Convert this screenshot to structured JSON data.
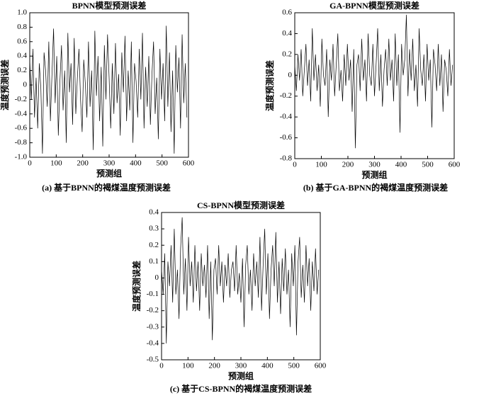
{
  "chart_data": [
    {
      "type": "line",
      "title": "BPNN模型预测误差",
      "xlabel": "预测组",
      "ylabel": "温度预测误差",
      "caption": "(a) 基于BPNN的褐煤温度预测误差",
      "color": "#000000",
      "x": [
        0,
        6,
        12,
        18,
        24,
        30,
        36,
        42,
        48,
        54,
        60,
        66,
        72,
        78,
        84,
        90,
        96,
        102,
        108,
        114,
        120,
        126,
        132,
        138,
        144,
        150,
        156,
        162,
        168,
        174,
        180,
        186,
        192,
        198,
        204,
        210,
        216,
        222,
        228,
        234,
        240,
        246,
        252,
        258,
        264,
        270,
        276,
        282,
        288,
        294,
        300,
        306,
        312,
        318,
        324,
        330,
        336,
        342,
        348,
        354,
        360,
        366,
        372,
        378,
        384,
        390,
        396,
        402,
        408,
        414,
        420,
        426,
        432,
        438,
        444,
        450,
        456,
        462,
        468,
        474,
        480,
        486,
        492,
        498,
        504,
        510,
        516,
        522,
        528,
        534,
        540,
        546,
        552,
        558,
        564,
        570,
        576,
        582,
        588,
        594
      ],
      "values": [
        0.35,
        -0.2,
        0.5,
        -0.45,
        0.1,
        -0.6,
        0.3,
        -0.05,
        -0.95,
        0.45,
        0.2,
        -0.3,
        0.6,
        -0.5,
        0.15,
        0.78,
        -0.25,
        0.4,
        -0.7,
        0.05,
        0.55,
        -0.35,
        0.2,
        -0.8,
        0.72,
        -0.1,
        0.3,
        -0.55,
        0.65,
        -0.4,
        0.1,
        0.5,
        -0.2,
        -0.65,
        0.35,
        0.02,
        -0.45,
        0.6,
        -0.3,
        0.2,
        -0.9,
        0.75,
        -0.15,
        0.4,
        -0.5,
        0.25,
        -0.85,
        0.55,
        -0.2,
        0.7,
        0.1,
        -0.6,
        0.3,
        -0.4,
        0.58,
        -0.25,
        0.15,
        -0.7,
        0.45,
        -0.1,
        0.68,
        -0.5,
        0.2,
        -0.35,
        0.6,
        -0.8,
        0.3,
        0.05,
        -0.45,
        0.5,
        -0.2,
        0.72,
        -0.6,
        0.25,
        -0.3,
        0.4,
        -0.55,
        0.15,
        0.6,
        -0.4,
        0.1,
        -0.75,
        0.5,
        -0.2,
        0.3,
        -0.5,
        0.82,
        -0.3,
        0.45,
        -0.65,
        0.2,
        -0.95,
        0.55,
        -0.1,
        0.38,
        -0.6,
        0.7,
        -0.25,
        0.3,
        -0.45
      ],
      "xlim": [
        0,
        600
      ],
      "xticks": [
        0,
        100,
        200,
        300,
        400,
        500,
        600
      ],
      "ylim": [
        -1,
        1
      ],
      "yticks": [
        {
          "value": 1,
          "label": "1.0"
        },
        0.8,
        0.6,
        0.4,
        0.2,
        0,
        -0.2,
        -0.4,
        -0.6,
        -0.8,
        {
          "value": -1,
          "label": "-1.0"
        }
      ]
    },
    {
      "type": "line",
      "title": "GA-BPNN模型预测误差",
      "xlabel": "预测组",
      "ylabel": "温度预测误差",
      "caption": "(b) 基于GA-BPNN的褐煤温度预测误差",
      "color": "#000000",
      "x": [
        0,
        6,
        12,
        18,
        24,
        30,
        36,
        42,
        48,
        54,
        60,
        66,
        72,
        78,
        84,
        90,
        96,
        102,
        108,
        114,
        120,
        126,
        132,
        138,
        144,
        150,
        156,
        162,
        168,
        174,
        180,
        186,
        192,
        198,
        204,
        210,
        216,
        222,
        228,
        234,
        240,
        246,
        252,
        258,
        264,
        270,
        276,
        282,
        288,
        294,
        300,
        306,
        312,
        318,
        324,
        330,
        336,
        342,
        348,
        354,
        360,
        366,
        372,
        378,
        384,
        390,
        396,
        402,
        408,
        414,
        420,
        426,
        432,
        438,
        444,
        450,
        456,
        462,
        468,
        474,
        480,
        486,
        492,
        498,
        504,
        510,
        516,
        522,
        528,
        534,
        540,
        546,
        552,
        558,
        564,
        570,
        576,
        582,
        588,
        594
      ],
      "values": [
        0.1,
        -0.15,
        0.2,
        -0.05,
        0.25,
        -0.2,
        0.05,
        0.3,
        -0.1,
        0.15,
        -0.25,
        0.45,
        -0.05,
        0.2,
        -0.15,
        0.1,
        -0.3,
        0.35,
        0.0,
        -0.1,
        0.25,
        -0.4,
        0.15,
        -0.05,
        0.3,
        -0.2,
        0.1,
        0.4,
        -0.15,
        0.05,
        -0.25,
        0.2,
        -0.1,
        0.3,
        -0.05,
        0.15,
        -0.35,
        0.25,
        -0.7,
        0.1,
        0.2,
        -0.15,
        0.35,
        -0.05,
        0.15,
        -0.25,
        0.4,
        0.0,
        -0.1,
        0.3,
        -0.2,
        0.1,
        0.45,
        -0.15,
        0.2,
        -0.3,
        0.05,
        0.25,
        -0.1,
        0.35,
        -0.05,
        0.15,
        -0.25,
        0.4,
        -0.1,
        0.2,
        -0.55,
        0.3,
        0.0,
        0.15,
        0.58,
        -0.2,
        0.25,
        -0.05,
        0.35,
        -0.15,
        0.1,
        -0.3,
        0.45,
        0.05,
        -0.1,
        0.2,
        -0.25,
        0.3,
        -0.05,
        0.15,
        -0.5,
        0.25,
        0.1,
        -0.15,
        0.3,
        -0.1,
        0.2,
        -0.35,
        0.15,
        0.05,
        -0.2,
        0.25,
        -0.1,
        0.1
      ],
      "xlim": [
        0,
        600
      ],
      "xticks": [
        0,
        100,
        200,
        300,
        400,
        500,
        600
      ],
      "ylim": [
        -0.8,
        0.6
      ],
      "yticks": [
        0.6,
        0.4,
        0.2,
        0,
        -0.2,
        -0.4,
        -0.6,
        -0.8
      ]
    },
    {
      "type": "line",
      "title": "CS-BPNN模型预测误差",
      "xlabel": "预测组",
      "ylabel": "温度预测误差",
      "caption": "(c) 基于CS-BPNN的褐煤温度预测误差",
      "color": "#000000",
      "x": [
        0,
        6,
        12,
        18,
        24,
        30,
        36,
        42,
        48,
        54,
        60,
        66,
        72,
        78,
        84,
        90,
        96,
        102,
        108,
        114,
        120,
        126,
        132,
        138,
        144,
        150,
        156,
        162,
        168,
        174,
        180,
        186,
        192,
        198,
        204,
        210,
        216,
        222,
        228,
        234,
        240,
        246,
        252,
        258,
        264,
        270,
        276,
        282,
        288,
        294,
        300,
        306,
        312,
        318,
        324,
        330,
        336,
        342,
        348,
        354,
        360,
        366,
        372,
        378,
        384,
        390,
        396,
        402,
        408,
        414,
        420,
        426,
        432,
        438,
        444,
        450,
        456,
        462,
        468,
        474,
        480,
        486,
        492,
        498,
        504,
        510,
        516,
        522,
        528,
        534,
        540,
        546,
        552,
        558,
        564,
        570,
        576,
        582,
        588,
        594
      ],
      "values": [
        0.05,
        -0.1,
        0.15,
        -0.4,
        0.1,
        -0.05,
        0.2,
        -0.15,
        0.3,
        -0.1,
        0.05,
        -0.25,
        0.18,
        0.37,
        -0.1,
        0.12,
        -0.2,
        0.25,
        -0.05,
        0.1,
        -0.15,
        0.2,
        -0.08,
        0.1,
        -0.2,
        0.15,
        -0.05,
        0.08,
        -0.12,
        0.2,
        -0.25,
        0.1,
        -0.38,
        0.05,
        0.12,
        -0.1,
        0.2,
        -0.05,
        0.1,
        -0.15,
        0.08,
        -0.05,
        0.15,
        -0.12,
        0.05,
        0.1,
        -0.08,
        0.2,
        -0.1,
        0.03,
        -0.15,
        0.12,
        -0.3,
        0.08,
        0.2,
        -0.1,
        0.05,
        -0.2,
        0.15,
        -0.05,
        0.1,
        -0.12,
        0.25,
        -0.2,
        0.08,
        0.3,
        -0.1,
        0.15,
        -0.25,
        0.05,
        0.2,
        -0.05,
        0.28,
        -0.15,
        0.1,
        -0.22,
        0.12,
        -0.08,
        0.18,
        -0.1,
        0.05,
        -0.3,
        0.15,
        -0.05,
        0.2,
        -0.35,
        0.1,
        0.25,
        -0.12,
        0.08,
        -0.15,
        0.2,
        -0.05,
        0.12,
        -0.2,
        0.1,
        -0.08,
        0.18,
        -0.1,
        0.05
      ],
      "xlim": [
        0,
        600
      ],
      "xticks": [
        0,
        100,
        200,
        300,
        400,
        500,
        600
      ],
      "ylim": [
        -0.5,
        0.4
      ],
      "yticks": [
        0.4,
        0.3,
        0.2,
        0.1,
        0,
        -0.1,
        -0.2,
        -0.3,
        -0.4,
        -0.5
      ]
    }
  ]
}
